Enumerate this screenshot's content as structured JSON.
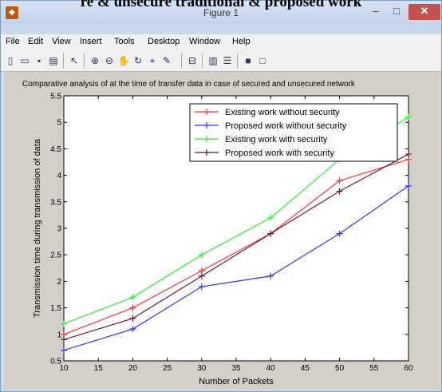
{
  "caption_text": "re & unsecure traditional & proposed work",
  "window": {
    "title": "Figure 1",
    "icon_glyph": "◆",
    "minimize": "–",
    "maximize": "□",
    "close": "✕"
  },
  "menu": [
    "File",
    "Edit",
    "View",
    "Insert",
    "Tools",
    "Desktop",
    "Window",
    "Help"
  ],
  "toolbar_glyphs": {
    "new-file-icon": "▯",
    "open-folder-icon": "▭",
    "save-icon": "▪",
    "print-icon": "▤",
    "pointer-icon": "↖",
    "zoom-in-icon": "⊕",
    "zoom-out-icon": "⊖",
    "pan-icon": "✋",
    "rotate-icon": "↻",
    "data-cursor-icon": "⌖",
    "brush-icon": "✎",
    "link-icon": "⊟",
    "colorbar-icon": "▥",
    "legend-icon": "☰",
    "hide-tools-icon": "■",
    "dock-icon": "□"
  },
  "chart_data": {
    "type": "line",
    "title": "Comparative analysis of at the time of transfer data in case of secured and unsecured network",
    "xlabel": "Number of Packets",
    "ylabel": "Transmission time during transmission of data",
    "xlim": [
      10,
      60
    ],
    "ylim": [
      0.5,
      5.5
    ],
    "xticks": [
      10,
      15,
      20,
      25,
      30,
      35,
      40,
      45,
      50,
      55,
      60
    ],
    "yticks": [
      0.5,
      1,
      1.5,
      2,
      2.5,
      3,
      3.5,
      4,
      4.5,
      5,
      5.5
    ],
    "grid": false,
    "legend_position": "top-right",
    "x": [
      10,
      20,
      30,
      40,
      50,
      60
    ],
    "series": [
      {
        "name": "Existing work without security",
        "color": "#ff3333",
        "values": [
          1.0,
          1.5,
          2.2,
          2.9,
          3.9,
          4.3
        ]
      },
      {
        "name": "Proposed work without security",
        "color": "#3333ff",
        "values": [
          0.7,
          1.1,
          1.9,
          2.1,
          2.9,
          3.8
        ]
      },
      {
        "name": "Existing work with security",
        "color": "#33ee33",
        "values": [
          1.2,
          1.7,
          2.5,
          3.2,
          4.3,
          5.1
        ]
      },
      {
        "name": "Proposed work with security",
        "color": "#661a33",
        "values": [
          0.9,
          1.3,
          2.1,
          2.9,
          3.7,
          4.4
        ]
      }
    ]
  }
}
